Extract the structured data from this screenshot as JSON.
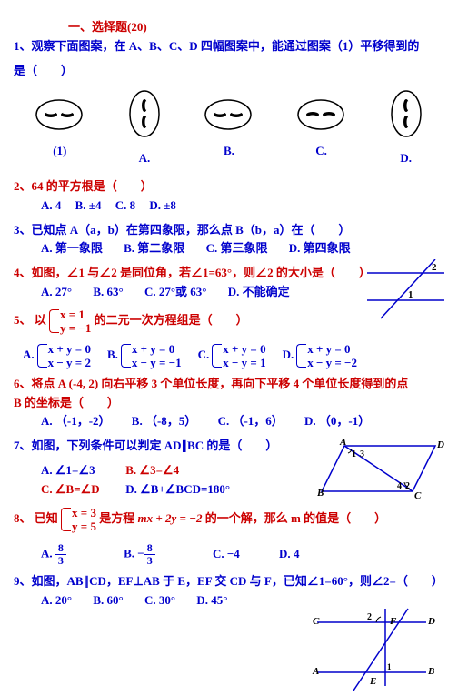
{
  "heading": "一、选择题(20)",
  "questions": [
    {
      "num": "1、",
      "text": "观察下面图案，在 A、B、C、D 四幅图案中，能通过图案（1）平移得到的",
      "text2": "是（　　）",
      "faces": [
        {
          "label": "(1)",
          "type": 1
        },
        {
          "label": "A.",
          "type": 2
        },
        {
          "label": "B.",
          "type": 1
        },
        {
          "label": "C.",
          "type": 3
        },
        {
          "label": "D.",
          "type": 2
        }
      ]
    },
    {
      "num": "2、",
      "text": "64 的平方根是（　　）",
      "opts": [
        {
          "l": "A. 4"
        },
        {
          "l": "B. ±4"
        },
        {
          "l": "C. 8"
        },
        {
          "l": "D. ±8"
        }
      ]
    },
    {
      "num": "3、",
      "text": "已知点 A（a，b）在第四象限，那么点 B（b，a）在（　　）",
      "opts": [
        {
          "l": "A. 第一象限"
        },
        {
          "l": "B. 第二象限"
        },
        {
          "l": "C. 第三象限"
        },
        {
          "l": "D. 第四象限"
        }
      ]
    },
    {
      "num": "4、",
      "text": "如图，∠1 与∠2 是同位角，若∠1=63°，则∠2 的大小是（　　）",
      "opts": [
        {
          "l": "A. 27°"
        },
        {
          "l": "B. 63°"
        },
        {
          "l": "C. 27°或 63°"
        },
        {
          "l": "D. 不能确定"
        }
      ]
    },
    {
      "num": "5、",
      "text_prefix": "以",
      "brace": [
        "x = 1",
        "y = −1"
      ],
      "text_suffix": "的二元一次方程组是（　　）",
      "sys_opts": [
        {
          "l": "A.",
          "t": [
            "x + y = 0",
            "x − y = 2"
          ]
        },
        {
          "l": "B.",
          "t": [
            "x + y = 0",
            "x − y = −1"
          ]
        },
        {
          "l": "C.",
          "t": [
            "x + y = 0",
            "x − y = 1"
          ]
        },
        {
          "l": "D.",
          "t": [
            "x + y = 0",
            "x − y = −2"
          ]
        }
      ]
    },
    {
      "num": "6、",
      "text": "将点 A (-4, 2) 向右平移 3 个单位长度，再向下平移 4 个单位长度得到的点",
      "text2": "B 的坐标是（　　）",
      "opts": [
        {
          "l": "A. （-1，-2）"
        },
        {
          "l": "B. （-8，5）"
        },
        {
          "l": "C. （-1，6）"
        },
        {
          "l": "D. （0，-1）"
        }
      ]
    },
    {
      "num": "7、",
      "text": "如图，下列条件可以判定 AD∥BC 的是（　　）",
      "opts2": [
        [
          {
            "l": "A. ∠1=∠3",
            "cls": "blue"
          },
          {
            "l": "B. ∠3=∠4",
            "cls": "red"
          }
        ],
        [
          {
            "l": "C. ∠B=∠D",
            "cls": "red"
          },
          {
            "l": "D. ∠B+∠BCD=180°",
            "cls": "blue"
          }
        ]
      ]
    },
    {
      "num": "8、",
      "text_prefix": "已知",
      "brace": [
        "x = 3",
        "y = 5"
      ],
      "text_mid": "是方程",
      "formula": "mx + 2y = −2",
      "text_suffix": "的一个解，那么 m 的值是（　　）",
      "opts_frac": [
        {
          "l": "A.",
          "num": "8",
          "den": "3"
        },
        {
          "l": "B.",
          "neg": true,
          "num": "8",
          "den": "3"
        },
        {
          "l": "C.",
          "text": "−4"
        },
        {
          "l": "D.",
          "text": "4"
        }
      ]
    },
    {
      "num": "9、",
      "text": "如图，AB∥CD，EF⊥AB 于 E，EF 交 CD 与 F，已知∠1=60°，则∠2=（　　）",
      "opts": [
        {
          "l": "A. 20°"
        },
        {
          "l": "B. 60°"
        },
        {
          "l": "C. 30°"
        },
        {
          "l": "D. 45°"
        }
      ]
    }
  ]
}
